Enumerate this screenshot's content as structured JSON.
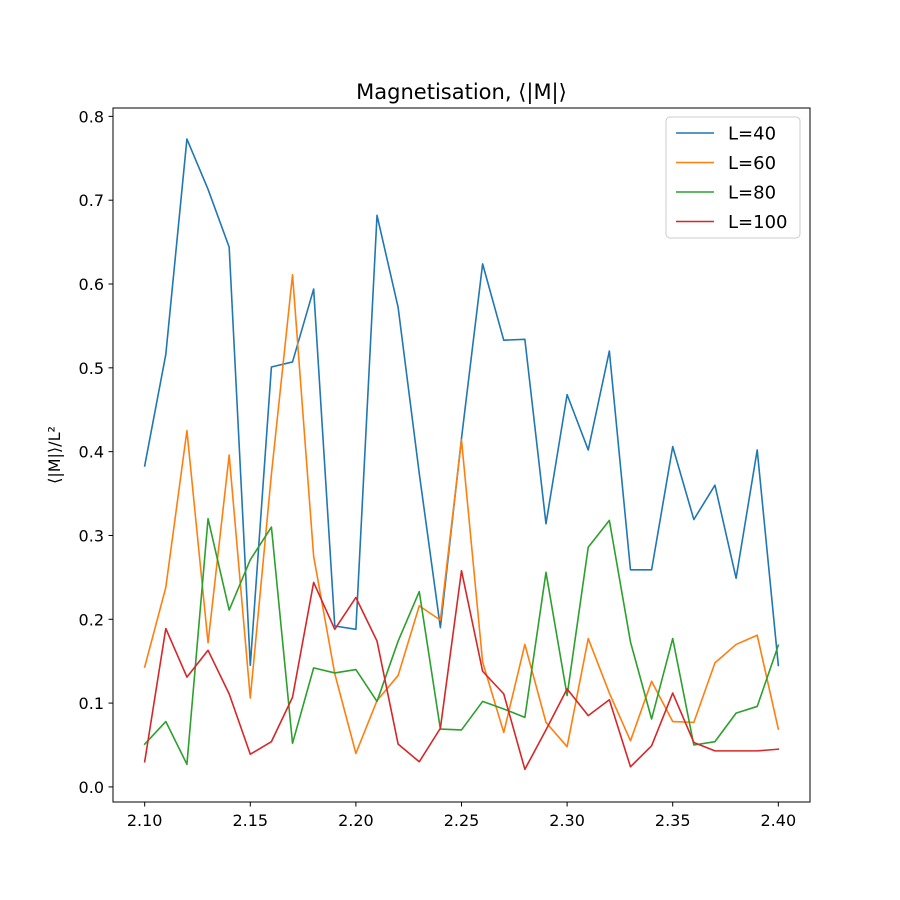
{
  "chart_data": {
    "type": "line",
    "title": "Magnetisation, ⟨|M|⟩",
    "xlabel": "",
    "ylabel": "⟨|M|⟩/L²",
    "xlim": [
      2.085,
      2.415
    ],
    "ylim": [
      -0.018,
      0.81
    ],
    "x_ticks": [
      "2.10",
      "2.15",
      "2.20",
      "2.25",
      "2.30",
      "2.35",
      "2.40"
    ],
    "y_ticks": [
      "0.0",
      "0.1",
      "0.2",
      "0.3",
      "0.4",
      "0.5",
      "0.6",
      "0.7",
      "0.8"
    ],
    "x_tick_values": [
      2.1,
      2.15,
      2.2,
      2.25,
      2.3,
      2.35,
      2.4
    ],
    "y_tick_values": [
      0.0,
      0.1,
      0.2,
      0.3,
      0.4,
      0.5,
      0.6,
      0.7,
      0.8
    ],
    "grid": false,
    "legend_position": "top-right",
    "x": [
      2.1,
      2.11,
      2.12,
      2.13,
      2.14,
      2.15,
      2.16,
      2.17,
      2.18,
      2.19,
      2.2,
      2.21,
      2.22,
      2.23,
      2.24,
      2.25,
      2.26,
      2.27,
      2.28,
      2.29,
      2.3,
      2.31,
      2.32,
      2.33,
      2.34,
      2.35,
      2.36,
      2.37,
      2.38,
      2.39,
      2.4
    ],
    "series": [
      {
        "name": "L=40",
        "color": "#1f77b4",
        "values": [
          0.383,
          0.516,
          0.773,
          0.713,
          0.644,
          0.145,
          0.501,
          0.507,
          0.594,
          0.192,
          0.188,
          0.682,
          0.572,
          0.374,
          0.19,
          0.416,
          0.624,
          0.533,
          0.534,
          0.314,
          0.468,
          0.402,
          0.52,
          0.259,
          0.259,
          0.406,
          0.319,
          0.36,
          0.249,
          0.402,
          0.145
        ]
      },
      {
        "name": "L=60",
        "color": "#ff7f0e",
        "values": [
          0.143,
          0.238,
          0.425,
          0.172,
          0.396,
          0.106,
          0.373,
          0.611,
          0.275,
          0.135,
          0.04,
          0.103,
          0.133,
          0.216,
          0.199,
          0.414,
          0.149,
          0.065,
          0.17,
          0.077,
          0.048,
          0.177,
          0.112,
          0.055,
          0.126,
          0.078,
          0.077,
          0.148,
          0.17,
          0.181,
          0.069
        ]
      },
      {
        "name": "L=80",
        "color": "#2ca02c",
        "values": [
          0.051,
          0.078,
          0.027,
          0.32,
          0.211,
          0.271,
          0.31,
          0.052,
          0.142,
          0.136,
          0.14,
          0.102,
          0.174,
          0.233,
          0.069,
          0.068,
          0.102,
          0.093,
          0.083,
          0.256,
          0.109,
          0.286,
          0.318,
          0.173,
          0.081,
          0.177,
          0.05,
          0.054,
          0.088,
          0.096,
          0.169
        ]
      },
      {
        "name": "L=100",
        "color": "#d62728",
        "values": [
          0.03,
          0.189,
          0.131,
          0.163,
          0.111,
          0.039,
          0.054,
          0.107,
          0.244,
          0.188,
          0.226,
          0.174,
          0.051,
          0.03,
          0.07,
          0.258,
          0.138,
          0.111,
          0.021,
          0.068,
          0.117,
          0.085,
          0.104,
          0.024,
          0.049,
          0.112,
          0.053,
          0.043,
          0.043,
          0.043,
          0.045
        ]
      }
    ]
  }
}
